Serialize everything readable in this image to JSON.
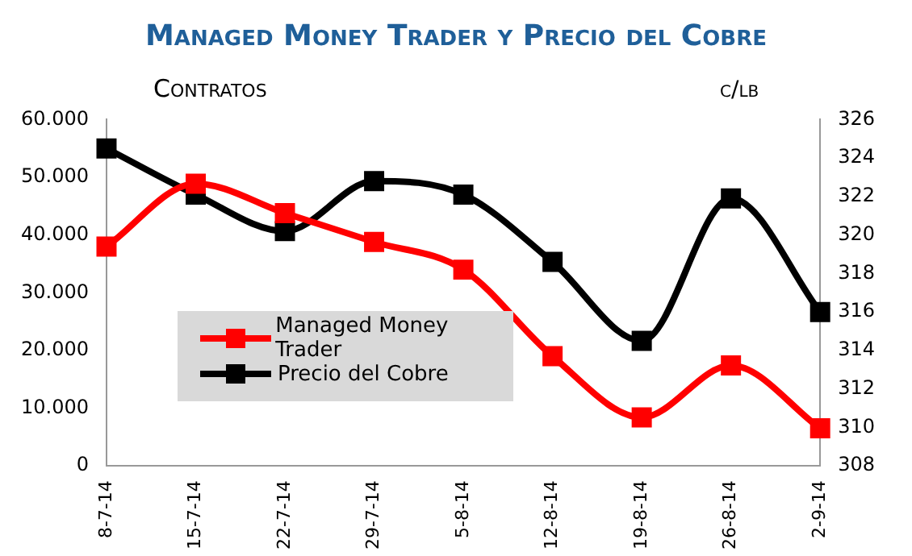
{
  "chart_data": {
    "type": "line",
    "title": "Managed Money Trader y Precio del Cobre",
    "ylabel": "Contratos",
    "y2label": "c/lb",
    "categories": [
      "8-7-14",
      "15-7-14",
      "22-7-14",
      "29-7-14",
      "5-8-14",
      "12-8-14",
      "19-8-14",
      "26-8-14",
      "2-9-14"
    ],
    "series": [
      {
        "name": "Managed Money Trader",
        "color": "#ff0000",
        "values": [
          38000,
          48900,
          43800,
          38800,
          34000,
          19000,
          8400,
          17400,
          6500
        ]
      },
      {
        "name": "Precio del Cobre",
        "color": "#000000",
        "axis": "y2",
        "values": [
          324.5,
          322.1,
          320.2,
          322.8,
          322.1,
          318.6,
          314.5,
          321.9,
          316
        ]
      }
    ],
    "ylim": [
      0,
      60000
    ],
    "yticks": [
      {
        "value": 0,
        "label": "0"
      },
      {
        "value": 10000,
        "label": "10.000"
      },
      {
        "value": 20000,
        "label": "20.000"
      },
      {
        "value": 30000,
        "label": "30.000"
      },
      {
        "value": 40000,
        "label": "40.000"
      },
      {
        "value": 50000,
        "label": "50.000"
      },
      {
        "value": 60000,
        "label": "60.000"
      }
    ],
    "y2lim": [
      308,
      326
    ],
    "y2ticks": [
      308,
      310,
      312,
      314,
      316,
      318,
      320,
      322,
      324,
      326
    ],
    "grid": false,
    "legend": "bottom left",
    "marker": "square",
    "line_style": "solid"
  }
}
